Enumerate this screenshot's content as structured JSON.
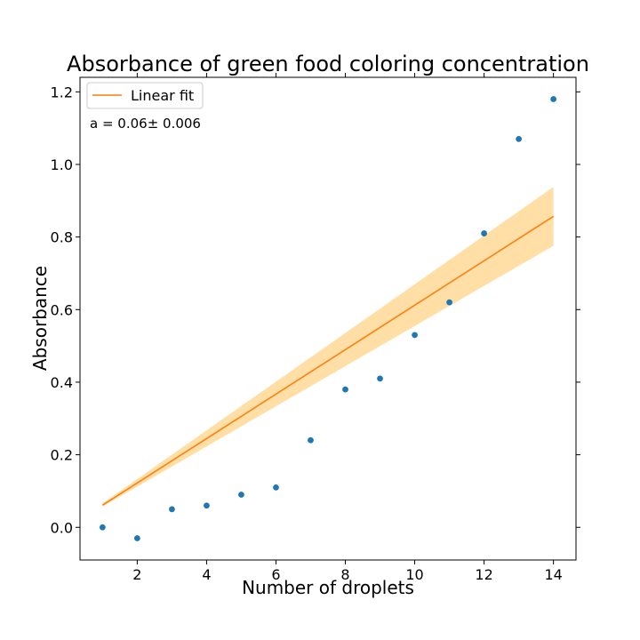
{
  "chart_data": {
    "type": "scatter",
    "title": "Absorbance of green food coloring concentration",
    "xlabel": "Number of droplets",
    "ylabel": "Absorbance",
    "xlim": [
      0.35,
      14.65
    ],
    "ylim": [
      -0.09,
      1.24
    ],
    "xticks": [
      2,
      4,
      6,
      8,
      10,
      12,
      14
    ],
    "yticks": [
      0.0,
      0.2,
      0.4,
      0.6,
      0.8,
      1.0,
      1.2
    ],
    "xtick_labels": [
      "2",
      "4",
      "6",
      "8",
      "10",
      "12",
      "14"
    ],
    "ytick_labels": [
      "0.0",
      "0.2",
      "0.4",
      "0.6",
      "0.8",
      "1.0",
      "1.2"
    ],
    "grid": false,
    "legend_position": "top-left",
    "legend_entries": [
      "Linear fit"
    ],
    "annotation": "a = 0.06± 0.006",
    "series": [
      {
        "kind": "scatter",
        "color": "#1f77b4",
        "x": [
          1,
          2,
          3,
          4,
          5,
          6,
          7,
          8,
          9,
          10,
          11,
          12,
          13,
          14
        ],
        "y": [
          0.0,
          -0.03,
          0.05,
          0.06,
          0.09,
          0.11,
          0.24,
          0.38,
          0.41,
          0.53,
          0.62,
          0.81,
          1.07,
          1.18
        ]
      },
      {
        "kind": "line",
        "name": "Linear fit",
        "color": "#ff7f0e",
        "x": [
          1,
          14
        ],
        "y": [
          0.061,
          0.857
        ]
      }
    ],
    "confidence_band": {
      "color": "#ffc04d",
      "x": [
        1,
        14
      ],
      "lower": [
        0.057,
        0.776
      ],
      "upper": [
        0.066,
        0.938
      ]
    }
  }
}
